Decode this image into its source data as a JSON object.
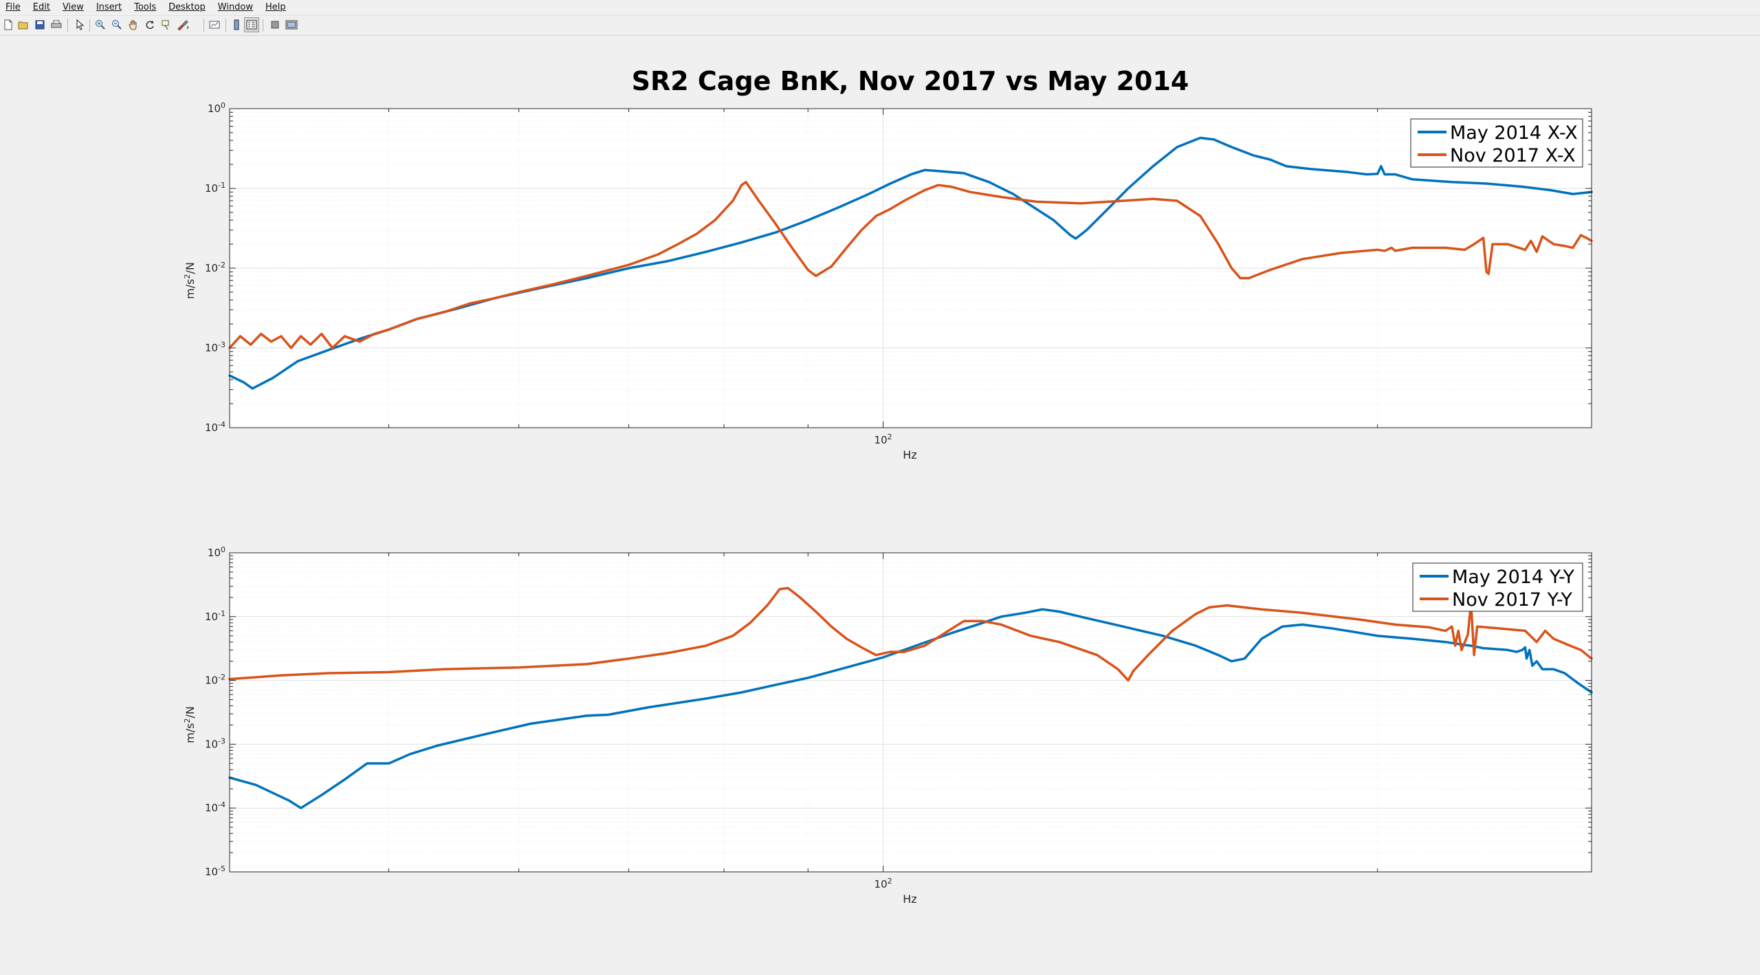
{
  "menu": {
    "file": "File",
    "edit": "Edit",
    "view": "View",
    "insert": "Insert",
    "tools": "Tools",
    "desktop": "Desktop",
    "window": "Window",
    "help": "Help"
  },
  "toolbar_icons": [
    "new-figure-icon",
    "open-file-icon",
    "save-icon",
    "print-icon",
    "pointer-icon",
    "zoom-in-icon",
    "zoom-out-icon",
    "pan-icon",
    "rotate-3d-icon",
    "data-cursor-icon",
    "brush-icon",
    "link-plot-icon",
    "colorbar-icon",
    "legend-icon",
    "hide-plot-tools-icon",
    "show-plot-tools-icon"
  ],
  "colors": {
    "blue": "#0072BD",
    "orange": "#D95319",
    "axes_bg": "#ffffff",
    "figure_bg": "#f0f0f0"
  },
  "chart_data": [
    {
      "type": "line",
      "title": "SR2 Cage BnK, Nov 2017 vs May 2014",
      "xlabel": "Hz",
      "ylabel": "m/s^2/N",
      "xscale": "log",
      "yscale": "log",
      "xlim": [
        40,
        270
      ],
      "ylim": [
        0.0001,
        1
      ],
      "x_tick_labels": [
        "10^2"
      ],
      "y_tick_labels": [
        "10^-4",
        "10^-3",
        "10^-2",
        "10^-1",
        "10^0"
      ],
      "grid": true,
      "legend_position": "top-right",
      "series": [
        {
          "name": "May 2014 X-X",
          "color": "#0072BD",
          "points": [
            [
              40,
              0.00045
            ],
            [
              40.8,
              0.00037
            ],
            [
              41.3,
              0.00031
            ],
            [
              42.5,
              0.00042
            ],
            [
              44,
              0.00068
            ],
            [
              46,
              0.00095
            ],
            [
              48,
              0.0013
            ],
            [
              50,
              0.0017
            ],
            [
              52,
              0.0023
            ],
            [
              55,
              0.0031
            ],
            [
              58,
              0.0042
            ],
            [
              62,
              0.0057
            ],
            [
              66,
              0.0075
            ],
            [
              70,
              0.01
            ],
            [
              74,
              0.0123
            ],
            [
              78,
              0.016
            ],
            [
              82,
              0.021
            ],
            [
              86,
              0.028
            ],
            [
              90,
              0.04
            ],
            [
              94,
              0.058
            ],
            [
              98,
              0.085
            ],
            [
              101,
              0.115
            ],
            [
              104,
              0.15
            ],
            [
              106,
              0.17
            ],
            [
              108,
              0.165
            ],
            [
              112,
              0.155
            ],
            [
              116,
              0.12
            ],
            [
              120,
              0.085
            ],
            [
              124,
              0.055
            ],
            [
              127,
              0.04
            ],
            [
              130,
              0.026
            ],
            [
              131,
              0.0235
            ],
            [
              133,
              0.03
            ],
            [
              137,
              0.055
            ],
            [
              141,
              0.1
            ],
            [
              146,
              0.19
            ],
            [
              151,
              0.33
            ],
            [
              156,
              0.43
            ],
            [
              159,
              0.41
            ],
            [
              163,
              0.33
            ],
            [
              168,
              0.26
            ],
            [
              172,
              0.23
            ],
            [
              176,
              0.19
            ],
            [
              182,
              0.175
            ],
            [
              192,
              0.16
            ],
            [
              197,
              0.15
            ],
            [
              200,
              0.152
            ],
            [
              201,
              0.19
            ],
            [
              202,
              0.15
            ],
            [
              205,
              0.15
            ],
            [
              210,
              0.13
            ],
            [
              222,
              0.12
            ],
            [
              233,
              0.115
            ],
            [
              245,
              0.105
            ],
            [
              255,
              0.095
            ],
            [
              263,
              0.085
            ],
            [
              270,
              0.09
            ]
          ]
        },
        {
          "name": "Nov 2017 X-X",
          "color": "#D95319",
          "points": [
            [
              40,
              0.001
            ],
            [
              40.6,
              0.0014
            ],
            [
              41.2,
              0.0011
            ],
            [
              41.8,
              0.0015
            ],
            [
              42.4,
              0.0012
            ],
            [
              43,
              0.0014
            ],
            [
              43.6,
              0.001
            ],
            [
              44.2,
              0.0014
            ],
            [
              44.8,
              0.0011
            ],
            [
              45.5,
              0.0015
            ],
            [
              46.2,
              0.001
            ],
            [
              47,
              0.0014
            ],
            [
              48,
              0.0012
            ],
            [
              49,
              0.0015
            ],
            [
              50,
              0.0017
            ],
            [
              52,
              0.0023
            ],
            [
              54,
              0.0028
            ],
            [
              56,
              0.0036
            ],
            [
              58,
              0.0042
            ],
            [
              60,
              0.005
            ],
            [
              63,
              0.0063
            ],
            [
              66,
              0.008
            ],
            [
              70,
              0.011
            ],
            [
              73,
              0.015
            ],
            [
              75,
              0.02
            ],
            [
              77,
              0.027
            ],
            [
              79,
              0.04
            ],
            [
              81,
              0.07
            ],
            [
              82,
              0.11
            ],
            [
              82.5,
              0.12
            ],
            [
              84,
              0.07
            ],
            [
              86,
              0.036
            ],
            [
              88,
              0.018
            ],
            [
              90,
              0.0095
            ],
            [
              91,
              0.008
            ],
            [
              93,
              0.0105
            ],
            [
              95,
              0.018
            ],
            [
              97,
              0.03
            ],
            [
              99,
              0.045
            ],
            [
              101,
              0.055
            ],
            [
              103,
              0.07
            ],
            [
              106,
              0.095
            ],
            [
              108,
              0.11
            ],
            [
              110,
              0.105
            ],
            [
              113,
              0.09
            ],
            [
              118,
              0.078
            ],
            [
              124,
              0.068
            ],
            [
              132,
              0.065
            ],
            [
              140,
              0.07
            ],
            [
              146,
              0.074
            ],
            [
              151,
              0.07
            ],
            [
              156,
              0.045
            ],
            [
              160,
              0.02
            ],
            [
              163,
              0.01
            ],
            [
              165,
              0.0075
            ],
            [
              167,
              0.0075
            ],
            [
              172,
              0.0095
            ],
            [
              180,
              0.013
            ],
            [
              190,
              0.0155
            ],
            [
              200,
              0.017
            ],
            [
              202,
              0.0165
            ],
            [
              204,
              0.018
            ],
            [
              205,
              0.0165
            ],
            [
              210,
              0.018
            ],
            [
              220,
              0.018
            ],
            [
              226,
              0.017
            ],
            [
              229,
              0.02
            ],
            [
              232,
              0.024
            ],
            [
              233,
              0.009
            ],
            [
              233.7,
              0.0085
            ],
            [
              235,
              0.02
            ],
            [
              240,
              0.02
            ],
            [
              246,
              0.017
            ],
            [
              248,
              0.022
            ],
            [
              250,
              0.016
            ],
            [
              252,
              0.025
            ],
            [
              256,
              0.02
            ],
            [
              260,
              0.019
            ],
            [
              263,
              0.018
            ],
            [
              266,
              0.026
            ],
            [
              268,
              0.024
            ],
            [
              270,
              0.022
            ]
          ]
        }
      ]
    },
    {
      "type": "line",
      "title": "",
      "xlabel": "Hz",
      "ylabel": "m/s^2/N",
      "xscale": "log",
      "yscale": "log",
      "xlim": [
        40,
        270
      ],
      "ylim": [
        1e-05,
        1
      ],
      "x_tick_labels": [
        "10^2"
      ],
      "y_tick_labels": [
        "10^-5",
        "10^-4",
        "10^-3",
        "10^-2",
        "10^-1",
        "10^0"
      ],
      "grid": true,
      "legend_position": "top-right",
      "series": [
        {
          "name": "May 2014 Y-Y",
          "color": "#0072BD",
          "points": [
            [
              40,
              0.0003
            ],
            [
              41.5,
              0.00023
            ],
            [
              43.5,
              0.00013
            ],
            [
              44.2,
              0.0001
            ],
            [
              45.5,
              0.00016
            ],
            [
              47,
              0.00028
            ],
            [
              48.5,
              0.0005
            ],
            [
              50,
              0.0005
            ],
            [
              51.5,
              0.0007
            ],
            [
              53.5,
              0.00095
            ],
            [
              57,
              0.0014
            ],
            [
              61,
              0.0021
            ],
            [
              66,
              0.0028
            ],
            [
              68,
              0.0029
            ],
            [
              72,
              0.0038
            ],
            [
              78,
              0.0052
            ],
            [
              82,
              0.0065
            ],
            [
              86,
              0.0085
            ],
            [
              90,
              0.011
            ],
            [
              95,
              0.016
            ],
            [
              100,
              0.023
            ],
            [
              105,
              0.036
            ],
            [
              110,
              0.055
            ],
            [
              115,
              0.08
            ],
            [
              118,
              0.1
            ],
            [
              122,
              0.115
            ],
            [
              125,
              0.13
            ],
            [
              128,
              0.12
            ],
            [
              133,
              0.095
            ],
            [
              140,
              0.07
            ],
            [
              148,
              0.05
            ],
            [
              155,
              0.035
            ],
            [
              160,
              0.025
            ],
            [
              163,
              0.02
            ],
            [
              166,
              0.022
            ],
            [
              170,
              0.045
            ],
            [
              175,
              0.07
            ],
            [
              180,
              0.075
            ],
            [
              188,
              0.065
            ],
            [
              200,
              0.05
            ],
            [
              210,
              0.045
            ],
            [
              220,
              0.04
            ],
            [
              226,
              0.036
            ],
            [
              228,
              0.035
            ],
            [
              232,
              0.032
            ],
            [
              240,
              0.03
            ],
            [
              243,
              0.028
            ],
            [
              245,
              0.03
            ],
            [
              246,
              0.033
            ],
            [
              246.5,
              0.022
            ],
            [
              247.5,
              0.03
            ],
            [
              248.5,
              0.017
            ],
            [
              250,
              0.02
            ],
            [
              252,
              0.015
            ],
            [
              256,
              0.015
            ],
            [
              260,
              0.013
            ],
            [
              265,
              0.009
            ],
            [
              270,
              0.0065
            ]
          ]
        },
        {
          "name": "Nov 2017 Y-Y",
          "color": "#D95319",
          "points": [
            [
              40,
              0.0105
            ],
            [
              43,
              0.012
            ],
            [
              46,
              0.013
            ],
            [
              50,
              0.0135
            ],
            [
              54,
              0.015
            ],
            [
              60,
              0.016
            ],
            [
              66,
              0.018
            ],
            [
              70,
              0.022
            ],
            [
              74,
              0.027
            ],
            [
              78,
              0.035
            ],
            [
              81,
              0.05
            ],
            [
              83,
              0.08
            ],
            [
              85,
              0.15
            ],
            [
              86.5,
              0.27
            ],
            [
              87.5,
              0.28
            ],
            [
              89,
              0.2
            ],
            [
              91,
              0.12
            ],
            [
              93,
              0.07
            ],
            [
              95,
              0.045
            ],
            [
              97,
              0.033
            ],
            [
              99,
              0.025
            ],
            [
              101,
              0.028
            ],
            [
              103,
              0.028
            ],
            [
              106,
              0.035
            ],
            [
              109,
              0.055
            ],
            [
              112,
              0.085
            ],
            [
              115,
              0.085
            ],
            [
              118,
              0.075
            ],
            [
              123,
              0.05
            ],
            [
              128,
              0.04
            ],
            [
              135,
              0.025
            ],
            [
              139,
              0.015
            ],
            [
              141,
              0.01
            ],
            [
              142,
              0.014
            ],
            [
              145,
              0.025
            ],
            [
              150,
              0.06
            ],
            [
              155,
              0.11
            ],
            [
              158,
              0.14
            ],
            [
              162,
              0.15
            ],
            [
              170,
              0.13
            ],
            [
              180,
              0.115
            ],
            [
              195,
              0.09
            ],
            [
              205,
              0.075
            ],
            [
              215,
              0.068
            ],
            [
              220,
              0.06
            ],
            [
              222,
              0.07
            ],
            [
              223,
              0.035
            ],
            [
              224,
              0.06
            ],
            [
              225,
              0.03
            ],
            [
              227,
              0.052
            ],
            [
              228,
              0.16
            ],
            [
              229,
              0.025
            ],
            [
              230,
              0.07
            ],
            [
              238,
              0.065
            ],
            [
              246,
              0.06
            ],
            [
              250,
              0.04
            ],
            [
              253,
              0.06
            ],
            [
              256,
              0.045
            ],
            [
              262,
              0.035
            ],
            [
              266,
              0.03
            ],
            [
              270,
              0.022
            ]
          ]
        }
      ]
    }
  ]
}
